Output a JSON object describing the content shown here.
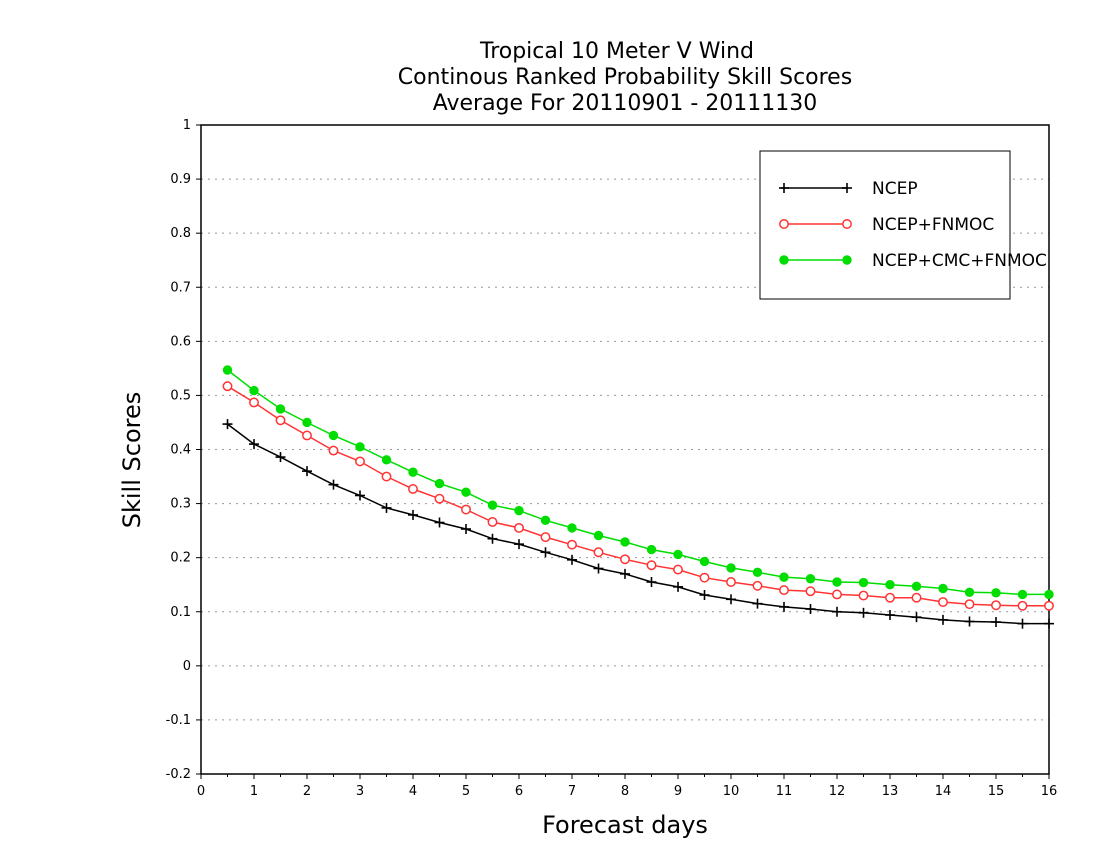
{
  "chart_data": {
    "type": "line",
    "title": [
      "Tropical 10 Meter V Wind",
      "Continous Ranked Probability Skill Scores",
      "Average For 20110901 - 20111130"
    ],
    "xlabel": "Forecast days",
    "ylabel": "Skill Scores",
    "xlim": [
      0,
      16
    ],
    "ylim": [
      -0.2,
      1
    ],
    "xticks": [
      0,
      1,
      2,
      3,
      4,
      5,
      6,
      7,
      8,
      9,
      10,
      11,
      12,
      13,
      14,
      15,
      16
    ],
    "yticks": [
      -0.2,
      -0.1,
      0,
      0.1,
      0.2,
      0.3,
      0.4,
      0.5,
      0.6,
      0.7,
      0.8,
      0.9,
      1
    ],
    "ytick_labels": [
      "-0.2",
      "-0.1",
      "0",
      "0.1",
      "0.2",
      "0.3",
      "0.4",
      "0.5",
      "0.6",
      "0.7",
      "0.8",
      "0.9",
      "1"
    ],
    "grid": "horizontal-dotted",
    "legend_position": "top-right",
    "x": [
      0.5,
      1,
      1.5,
      2,
      2.5,
      3,
      3.5,
      4,
      4.5,
      5,
      5.5,
      6,
      6.5,
      7,
      7.5,
      8,
      8.5,
      9,
      9.5,
      10,
      10.5,
      11,
      11.5,
      12,
      12.5,
      13,
      13.5,
      14,
      14.5,
      15,
      15.5,
      16
    ],
    "series": [
      {
        "name": "NCEP",
        "color": "#000000",
        "marker": "plus",
        "values": [
          0.447,
          0.41,
          0.386,
          0.36,
          0.335,
          0.315,
          0.292,
          0.279,
          0.265,
          0.253,
          0.235,
          0.225,
          0.21,
          0.196,
          0.18,
          0.17,
          0.155,
          0.146,
          0.131,
          0.123,
          0.115,
          0.109,
          0.105,
          0.1,
          0.098,
          0.094,
          0.09,
          0.085,
          0.082,
          0.081,
          0.078,
          0.078
        ]
      },
      {
        "name": "NCEP+FNMOC",
        "color": "#ff3333",
        "marker": "open-circle",
        "values": [
          0.517,
          0.487,
          0.454,
          0.426,
          0.398,
          0.378,
          0.35,
          0.327,
          0.309,
          0.289,
          0.266,
          0.255,
          0.238,
          0.224,
          0.21,
          0.197,
          0.186,
          0.178,
          0.163,
          0.155,
          0.148,
          0.14,
          0.138,
          0.132,
          0.13,
          0.126,
          0.126,
          0.118,
          0.114,
          0.112,
          0.111,
          0.111
        ]
      },
      {
        "name": "NCEP+CMC+FNMOC",
        "color": "#00dd00",
        "marker": "filled-circle",
        "values": [
          0.547,
          0.509,
          0.475,
          0.45,
          0.426,
          0.405,
          0.381,
          0.358,
          0.337,
          0.321,
          0.297,
          0.287,
          0.269,
          0.255,
          0.241,
          0.229,
          0.215,
          0.206,
          0.193,
          0.181,
          0.173,
          0.164,
          0.161,
          0.155,
          0.154,
          0.15,
          0.147,
          0.143,
          0.136,
          0.135,
          0.132,
          0.132
        ]
      }
    ]
  }
}
